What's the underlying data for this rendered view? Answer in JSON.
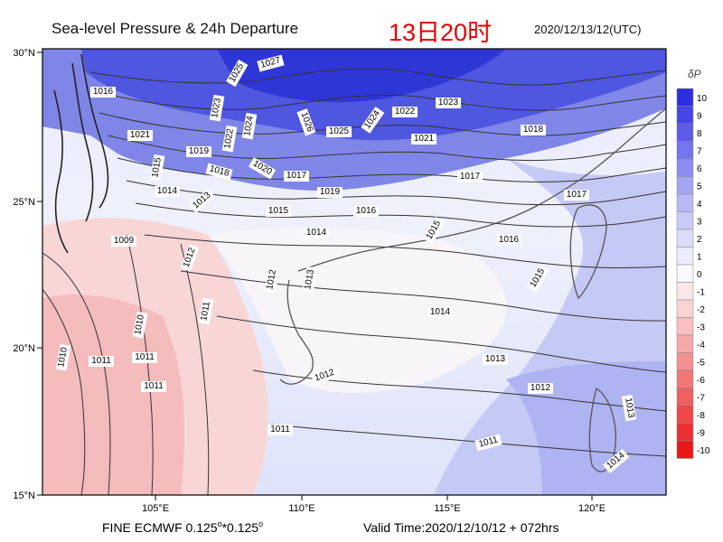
{
  "header": {
    "title": "Sea-level Pressure & 24h Departure",
    "local_time": "13日20时",
    "utc_time": "2020/12/13/12(UTC)"
  },
  "footer": {
    "model_prefix": "FINE ECMWF 0.125",
    "model_mid": "*0.125",
    "degree": "o",
    "valid_time": "Valid Time:2020/12/10/12 + 072hrs"
  },
  "axes": {
    "lat_labels": [
      "30°N",
      "25°N",
      "20°N",
      "15°N"
    ],
    "lon_labels": [
      "105°E",
      "110°E",
      "115°E",
      "120°E"
    ]
  },
  "colorbar": {
    "title": "δP",
    "labels": [
      "10",
      "9",
      "8",
      "7",
      "6",
      "5",
      "4",
      "3",
      "2",
      "1",
      "0",
      "-1",
      "-2",
      "-3",
      "-4",
      "-5",
      "-6",
      "-7",
      "-8",
      "-9",
      "-10"
    ],
    "colors": [
      "#2e2ee0",
      "#4545e8",
      "#5c5ce8",
      "#7474ee",
      "#8c8cf2",
      "#a4a4f4",
      "#b8b8f6",
      "#cacaf8",
      "#dcdcfa",
      "#ececfc",
      "#f8f8fe",
      "#fbe8e8",
      "#fad4d4",
      "#f8c0c0",
      "#f6a8a8",
      "#f49090",
      "#f27878",
      "#f06060",
      "#ee4848",
      "#ec3030",
      "#ea1818"
    ]
  },
  "isobar_labels": [
    "1027",
    "1025",
    "1023",
    "1024",
    "1022",
    "1026",
    "1025",
    "1024",
    "1022",
    "1023",
    "1016",
    "1021",
    "1019",
    "1020",
    "1021",
    "1018",
    "1017",
    "1019",
    "1018",
    "1017",
    "1016",
    "1015",
    "1014",
    "1015",
    "1013",
    "1014",
    "1013",
    "1012",
    "1012",
    "1011",
    "1011",
    "1012",
    "1013",
    "1012",
    "1011",
    "1010",
    "1011",
    "1009",
    "1010",
    "1011",
    "1011",
    "1014",
    "1017",
    "1016",
    "1015",
    "1015",
    "1014",
    "1013"
  ]
}
